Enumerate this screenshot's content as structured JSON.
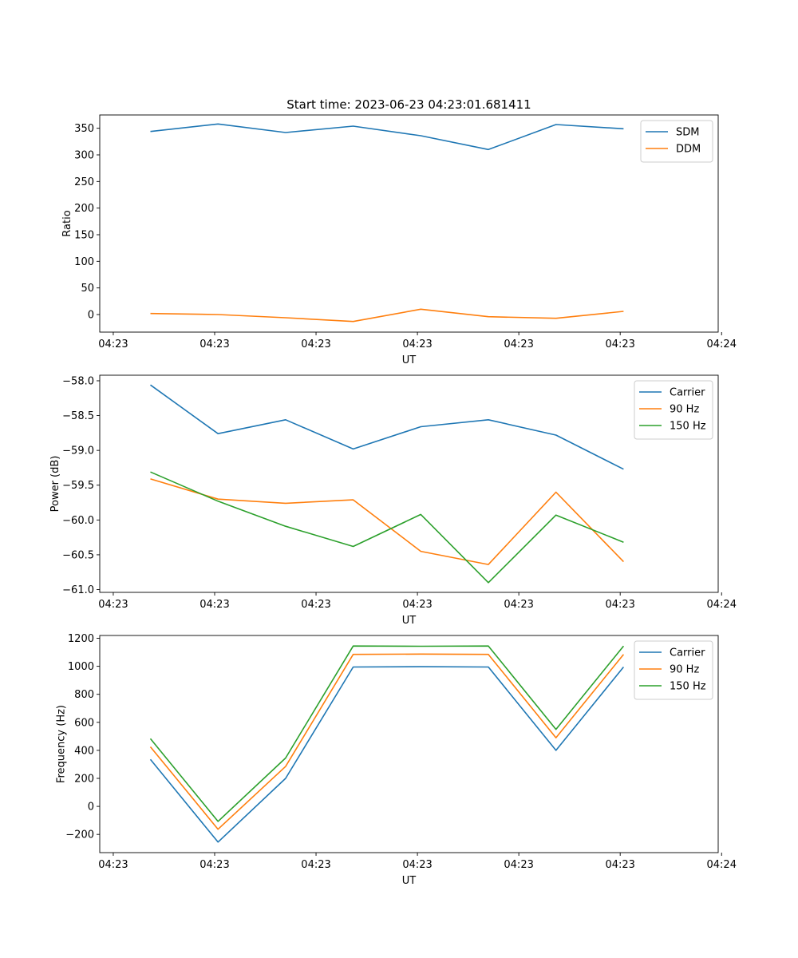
{
  "figure": {
    "title": "Start time: 2023-06-23 04:23:01.681411"
  },
  "chart_data": [
    {
      "type": "line",
      "title": "Start time: 2023-06-23 04:23:01.681411",
      "xlabel": "UT",
      "ylabel": "Ratio",
      "x": [
        1,
        2,
        3,
        4,
        5,
        6,
        7,
        8
      ],
      "xlim": [
        0.25,
        9.4
      ],
      "xticks": [
        {
          "v": 0.45,
          "label": "04:23"
        },
        {
          "v": 1.95,
          "label": "04:23"
        },
        {
          "v": 3.45,
          "label": "04:23"
        },
        {
          "v": 4.95,
          "label": "04:23"
        },
        {
          "v": 6.45,
          "label": "04:23"
        },
        {
          "v": 7.95,
          "label": "04:23"
        },
        {
          "v": 9.45,
          "label": "04:24"
        }
      ],
      "ylim": [
        -33,
        375
      ],
      "yticks": [
        {
          "v": 0,
          "label": "0"
        },
        {
          "v": 50,
          "label": "50"
        },
        {
          "v": 100,
          "label": "100"
        },
        {
          "v": 150,
          "label": "150"
        },
        {
          "v": 200,
          "label": "200"
        },
        {
          "v": 250,
          "label": "250"
        },
        {
          "v": 300,
          "label": "300"
        },
        {
          "v": 350,
          "label": "350"
        }
      ],
      "legend": "top-right",
      "grid": false,
      "series": [
        {
          "name": "SDM",
          "color": "#1f77b4",
          "values": [
            344,
            358,
            342,
            354,
            336,
            310,
            357,
            349
          ]
        },
        {
          "name": "DDM",
          "color": "#ff7f0e",
          "values": [
            2,
            0,
            -6,
            -13,
            10,
            -4,
            -7,
            6
          ]
        }
      ]
    },
    {
      "type": "line",
      "title": "",
      "xlabel": "UT",
      "ylabel": "Power (dB)",
      "x": [
        1,
        2,
        3,
        4,
        5,
        6,
        7,
        8
      ],
      "xlim": [
        0.25,
        9.4
      ],
      "xticks": [
        {
          "v": 0.45,
          "label": "04:23"
        },
        {
          "v": 1.95,
          "label": "04:23"
        },
        {
          "v": 3.45,
          "label": "04:23"
        },
        {
          "v": 4.95,
          "label": "04:23"
        },
        {
          "v": 6.45,
          "label": "04:23"
        },
        {
          "v": 7.95,
          "label": "04:23"
        },
        {
          "v": 9.45,
          "label": "04:24"
        }
      ],
      "ylim": [
        -61.04,
        -57.92
      ],
      "yticks": [
        {
          "v": -58.0,
          "label": "−58.0"
        },
        {
          "v": -58.5,
          "label": "−58.5"
        },
        {
          "v": -59.0,
          "label": "−59.0"
        },
        {
          "v": -59.5,
          "label": "−59.5"
        },
        {
          "v": -60.0,
          "label": "−60.0"
        },
        {
          "v": -60.5,
          "label": "−60.5"
        },
        {
          "v": -61.0,
          "label": "−61.0"
        }
      ],
      "legend": "top-right",
      "grid": false,
      "series": [
        {
          "name": "Carrier",
          "color": "#1f77b4",
          "values": [
            -58.06,
            -58.76,
            -58.56,
            -58.98,
            -58.66,
            -58.56,
            -58.78,
            -59.27
          ]
        },
        {
          "name": "90 Hz",
          "color": "#ff7f0e",
          "values": [
            -59.41,
            -59.7,
            -59.76,
            -59.71,
            -60.45,
            -60.64,
            -59.6,
            -60.6
          ]
        },
        {
          "name": "150 Hz",
          "color": "#2ca02c",
          "values": [
            -59.31,
            -59.73,
            -60.09,
            -60.38,
            -59.92,
            -60.9,
            -59.93,
            -60.32
          ]
        }
      ]
    },
    {
      "type": "line",
      "title": "",
      "xlabel": "UT",
      "ylabel": "Frequency (Hz)",
      "x": [
        1,
        2,
        3,
        4,
        5,
        6,
        7,
        8
      ],
      "xlim": [
        0.25,
        9.4
      ],
      "xticks": [
        {
          "v": 0.45,
          "label": "04:23"
        },
        {
          "v": 1.95,
          "label": "04:23"
        },
        {
          "v": 3.45,
          "label": "04:23"
        },
        {
          "v": 4.95,
          "label": "04:23"
        },
        {
          "v": 6.45,
          "label": "04:23"
        },
        {
          "v": 7.95,
          "label": "04:23"
        },
        {
          "v": 9.45,
          "label": "04:24"
        }
      ],
      "ylim": [
        -330,
        1220
      ],
      "yticks": [
        {
          "v": -200,
          "label": "−200"
        },
        {
          "v": 0,
          "label": "0"
        },
        {
          "v": 200,
          "label": "200"
        },
        {
          "v": 400,
          "label": "400"
        },
        {
          "v": 600,
          "label": "600"
        },
        {
          "v": 800,
          "label": "800"
        },
        {
          "v": 1000,
          "label": "1000"
        },
        {
          "v": 1200,
          "label": "1200"
        }
      ],
      "legend": "top-right",
      "grid": false,
      "series": [
        {
          "name": "Carrier",
          "color": "#1f77b4",
          "values": [
            335,
            -255,
            200,
            995,
            997,
            995,
            400,
            995
          ]
        },
        {
          "name": "90 Hz",
          "color": "#ff7f0e",
          "values": [
            425,
            -163,
            285,
            1085,
            1087,
            1085,
            490,
            1085
          ]
        },
        {
          "name": "150 Hz",
          "color": "#2ca02c",
          "values": [
            483,
            -107,
            345,
            1145,
            1143,
            1145,
            550,
            1145
          ]
        }
      ]
    }
  ]
}
